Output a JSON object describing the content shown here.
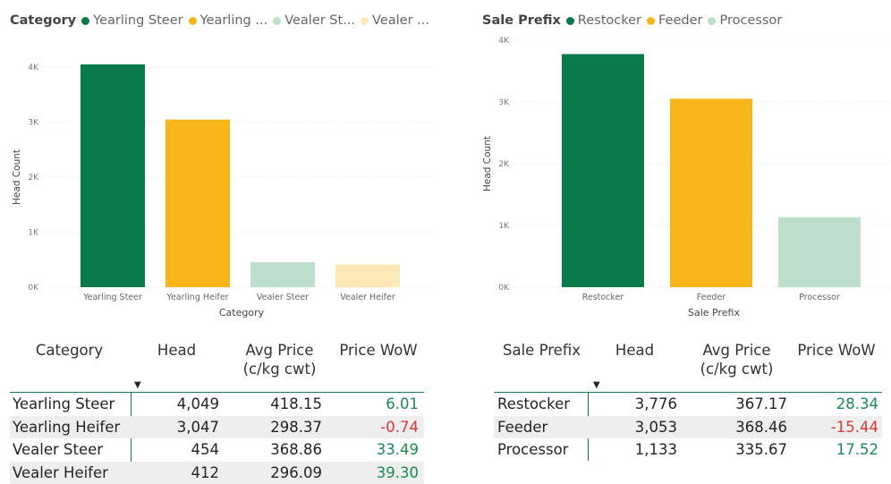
{
  "colors": {
    "dark_green": "#0b7a4b",
    "gold": "#f8b517",
    "light_green": "#bcdecb",
    "light_gold": "#fde9b8",
    "positive": "#1a8a4f",
    "negative": "#d63a3a"
  },
  "left": {
    "legend": {
      "title": "Category",
      "items": [
        {
          "label": "Yearling Steer",
          "color": "#0b7a4b"
        },
        {
          "label": "Yearling ...",
          "color": "#f8b517"
        },
        {
          "label": "Vealer St...",
          "color": "#bcdecb"
        },
        {
          "label": "Vealer ...",
          "color": "#fde9b8"
        }
      ]
    },
    "chart_data": {
      "type": "bar",
      "categories": [
        "Yearling Steer",
        "Yearling Heifer",
        "Vealer Steer",
        "Vealer Heifer"
      ],
      "values": [
        4049,
        3047,
        454,
        412
      ],
      "colors": [
        "#0b7a4b",
        "#f8b517",
        "#bcdecb",
        "#fde9b8"
      ],
      "xlabel": "Category",
      "ylabel": "Head Count",
      "yticks": [
        "0K",
        "1K",
        "2K",
        "3K",
        "4K"
      ],
      "ylim": [
        0,
        4000
      ],
      "grid": true
    },
    "table": {
      "columns": [
        "Category",
        "Head",
        "Avg Price\n(c/kg cwt)",
        "Price WoW"
      ],
      "rows": [
        {
          "name": "Yearling Steer",
          "head": "4,049",
          "price": "418.15",
          "wow": "6.01",
          "sign": "pos"
        },
        {
          "name": "Yearling Heifer",
          "head": "3,047",
          "price": "298.37",
          "wow": "-0.74",
          "sign": "neg"
        },
        {
          "name": "Vealer Steer",
          "head": "454",
          "price": "368.86",
          "wow": "33.49",
          "sign": "pos"
        },
        {
          "name": "Vealer Heifer",
          "head": "412",
          "price": "296.09",
          "wow": "39.30",
          "sign": "pos"
        }
      ]
    }
  },
  "right": {
    "legend": {
      "title": "Sale Prefix",
      "items": [
        {
          "label": "Restocker",
          "color": "#0b7a4b"
        },
        {
          "label": "Feeder",
          "color": "#f8b517"
        },
        {
          "label": "Processor",
          "color": "#bcdecb"
        }
      ]
    },
    "chart_data": {
      "type": "bar",
      "categories": [
        "Restocker",
        "Feeder",
        "Processor"
      ],
      "values": [
        3776,
        3053,
        1133
      ],
      "colors": [
        "#0b7a4b",
        "#f8b517",
        "#bcdecb"
      ],
      "xlabel": "Sale Prefix",
      "ylabel": "Head Count",
      "yticks": [
        "0K",
        "1K",
        "2K",
        "3K",
        "4K"
      ],
      "ylim": [
        0,
        4000
      ],
      "grid": true
    },
    "table": {
      "columns": [
        "Sale Prefix",
        "Head",
        "Avg Price\n(c/kg cwt)",
        "Price WoW"
      ],
      "rows": [
        {
          "name": "Restocker",
          "head": "3,776",
          "price": "367.17",
          "wow": "28.34",
          "sign": "pos"
        },
        {
          "name": "Feeder",
          "head": "3,053",
          "price": "368.46",
          "wow": "-15.44",
          "sign": "neg"
        },
        {
          "name": "Processor",
          "head": "1,133",
          "price": "335.67",
          "wow": "17.52",
          "sign": "pos"
        }
      ]
    }
  }
}
